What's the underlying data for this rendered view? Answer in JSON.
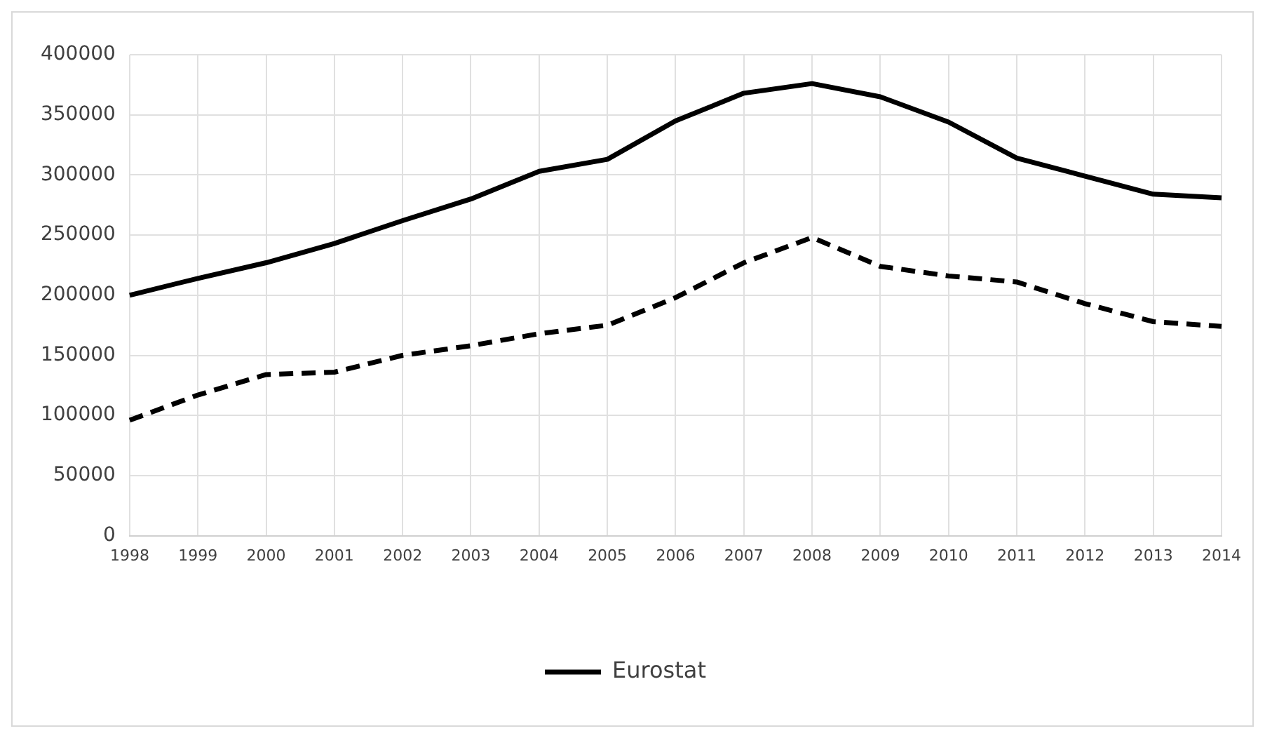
{
  "chart_data": {
    "type": "line",
    "categories": [
      "1998",
      "1999",
      "2000",
      "2001",
      "2002",
      "2003",
      "2004",
      "2005",
      "2006",
      "2007",
      "2008",
      "2009",
      "2010",
      "2011",
      "2012",
      "2013",
      "2014"
    ],
    "series": [
      {
        "name": "Eurostat",
        "color": "#000000",
        "line_style": "solid",
        "values": [
          200000,
          214000,
          227000,
          243000,
          262000,
          280000,
          303000,
          313000,
          345000,
          368000,
          376000,
          365000,
          344000,
          314000,
          299000,
          284000,
          281000
        ]
      },
      {
        "color": "#000000",
        "line_style": "dashed",
        "values": [
          96000,
          117000,
          134000,
          136000,
          150000,
          158000,
          168000,
          175000,
          198000,
          227000,
          248000,
          224000,
          216000,
          211000,
          193000,
          178000,
          174000
        ]
      }
    ],
    "ylim": [
      0,
      400000
    ],
    "yticks": [
      0,
      50000,
      100000,
      150000,
      200000,
      250000,
      300000,
      350000,
      400000
    ],
    "grid": true,
    "legend": "bottom",
    "marker": "none"
  }
}
